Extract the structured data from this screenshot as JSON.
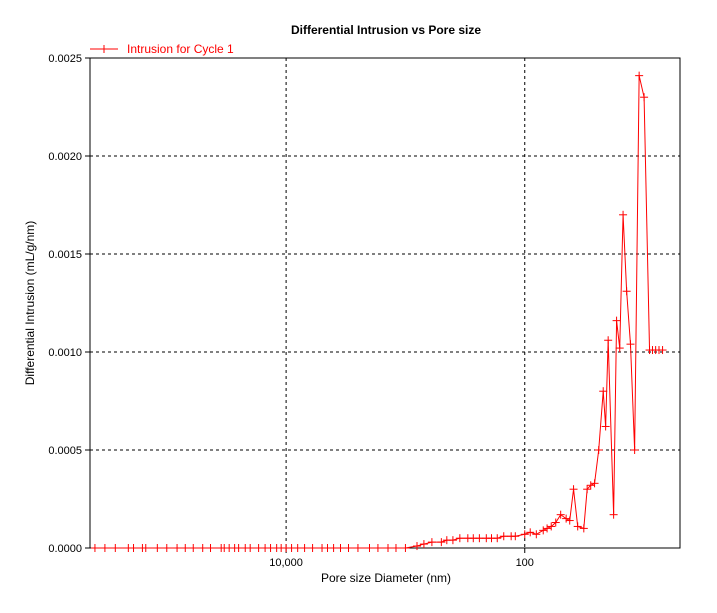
{
  "chart_data": {
    "type": "line",
    "title": "Differential Intrusion vs Pore size",
    "xlabel": "Pore size Diameter (nm)",
    "ylabel": "Differential Intrusion (mL/g/nm)",
    "x_scale": "log",
    "x_reversed": true,
    "xlim": [
      440000,
      5
    ],
    "ylim": [
      0,
      0.0025
    ],
    "x_ticks": [
      {
        "value": 10000,
        "label": "10,000"
      },
      {
        "value": 100,
        "label": "100"
      }
    ],
    "y_ticks": [
      {
        "value": 0,
        "label": "0.0000"
      },
      {
        "value": 0.0005,
        "label": "0.0005"
      },
      {
        "value": 0.001,
        "label": "0.0010"
      },
      {
        "value": 0.0015,
        "label": "0.0015"
      },
      {
        "value": 0.002,
        "label": "0.0020"
      },
      {
        "value": 0.0025,
        "label": "0.0025"
      }
    ],
    "grid": true,
    "legend_position": "top-left",
    "color": "#ff0000",
    "series": [
      {
        "name": "Intrusion for Cycle 1",
        "x": [
          400000,
          330000,
          270000,
          210000,
          190000,
          160000,
          150000,
          120000,
          100000,
          82000,
          70000,
          60000,
          50000,
          43000,
          35000,
          33000,
          30000,
          27000,
          25000,
          22000,
          20000,
          17000,
          15000,
          13500,
          12000,
          11000,
          10000,
          9000,
          8000,
          7000,
          6000,
          5000,
          4500,
          4000,
          3500,
          3000,
          2500,
          2000,
          1700,
          1400,
          1200,
          1000,
          800,
          700,
          600,
          500,
          450,
          400,
          350,
          300,
          270,
          240,
          210,
          190,
          170,
          150,
          130,
          120,
          100,
          90,
          80,
          70,
          65,
          60,
          55,
          50,
          45,
          42,
          39,
          36,
          32,
          30,
          28,
          26,
          24,
          22,
          21,
          20,
          18,
          17,
          16,
          15,
          14,
          13,
          12,
          11,
          10,
          9,
          8.5,
          8,
          7.5,
          7
        ],
        "values": [
          0,
          0,
          0,
          0,
          0,
          0,
          0,
          0,
          0,
          0,
          0,
          0,
          0,
          0,
          0,
          0,
          0,
          0,
          0,
          0,
          0,
          0,
          0,
          0,
          0,
          0,
          0,
          0,
          0,
          0,
          0,
          0,
          0,
          0,
          0,
          0,
          0,
          0,
          0,
          0,
          0,
          0,
          1e-05,
          2e-05,
          3e-05,
          3e-05,
          4e-05,
          4e-05,
          5e-05,
          5e-05,
          5e-05,
          5e-05,
          5e-05,
          5e-05,
          5e-05,
          6e-05,
          6e-05,
          6e-05,
          7e-05,
          8e-05,
          7e-05,
          9e-05,
          0.0001,
          0.00011,
          0.00013,
          0.00017,
          0.00015,
          0.00014,
          0.0003,
          0.00011,
          0.0001,
          0.0003,
          0.00032,
          0.00033,
          0.0005,
          0.0008,
          0.00062,
          0.00106,
          0.00017,
          0.00116,
          0.00102,
          0.0017,
          0.00131,
          0.00104,
          0.0005,
          0.00241,
          0.0023,
          0.00101,
          0.00101,
          0.00101,
          0.00101,
          0.00101
        ]
      }
    ]
  }
}
